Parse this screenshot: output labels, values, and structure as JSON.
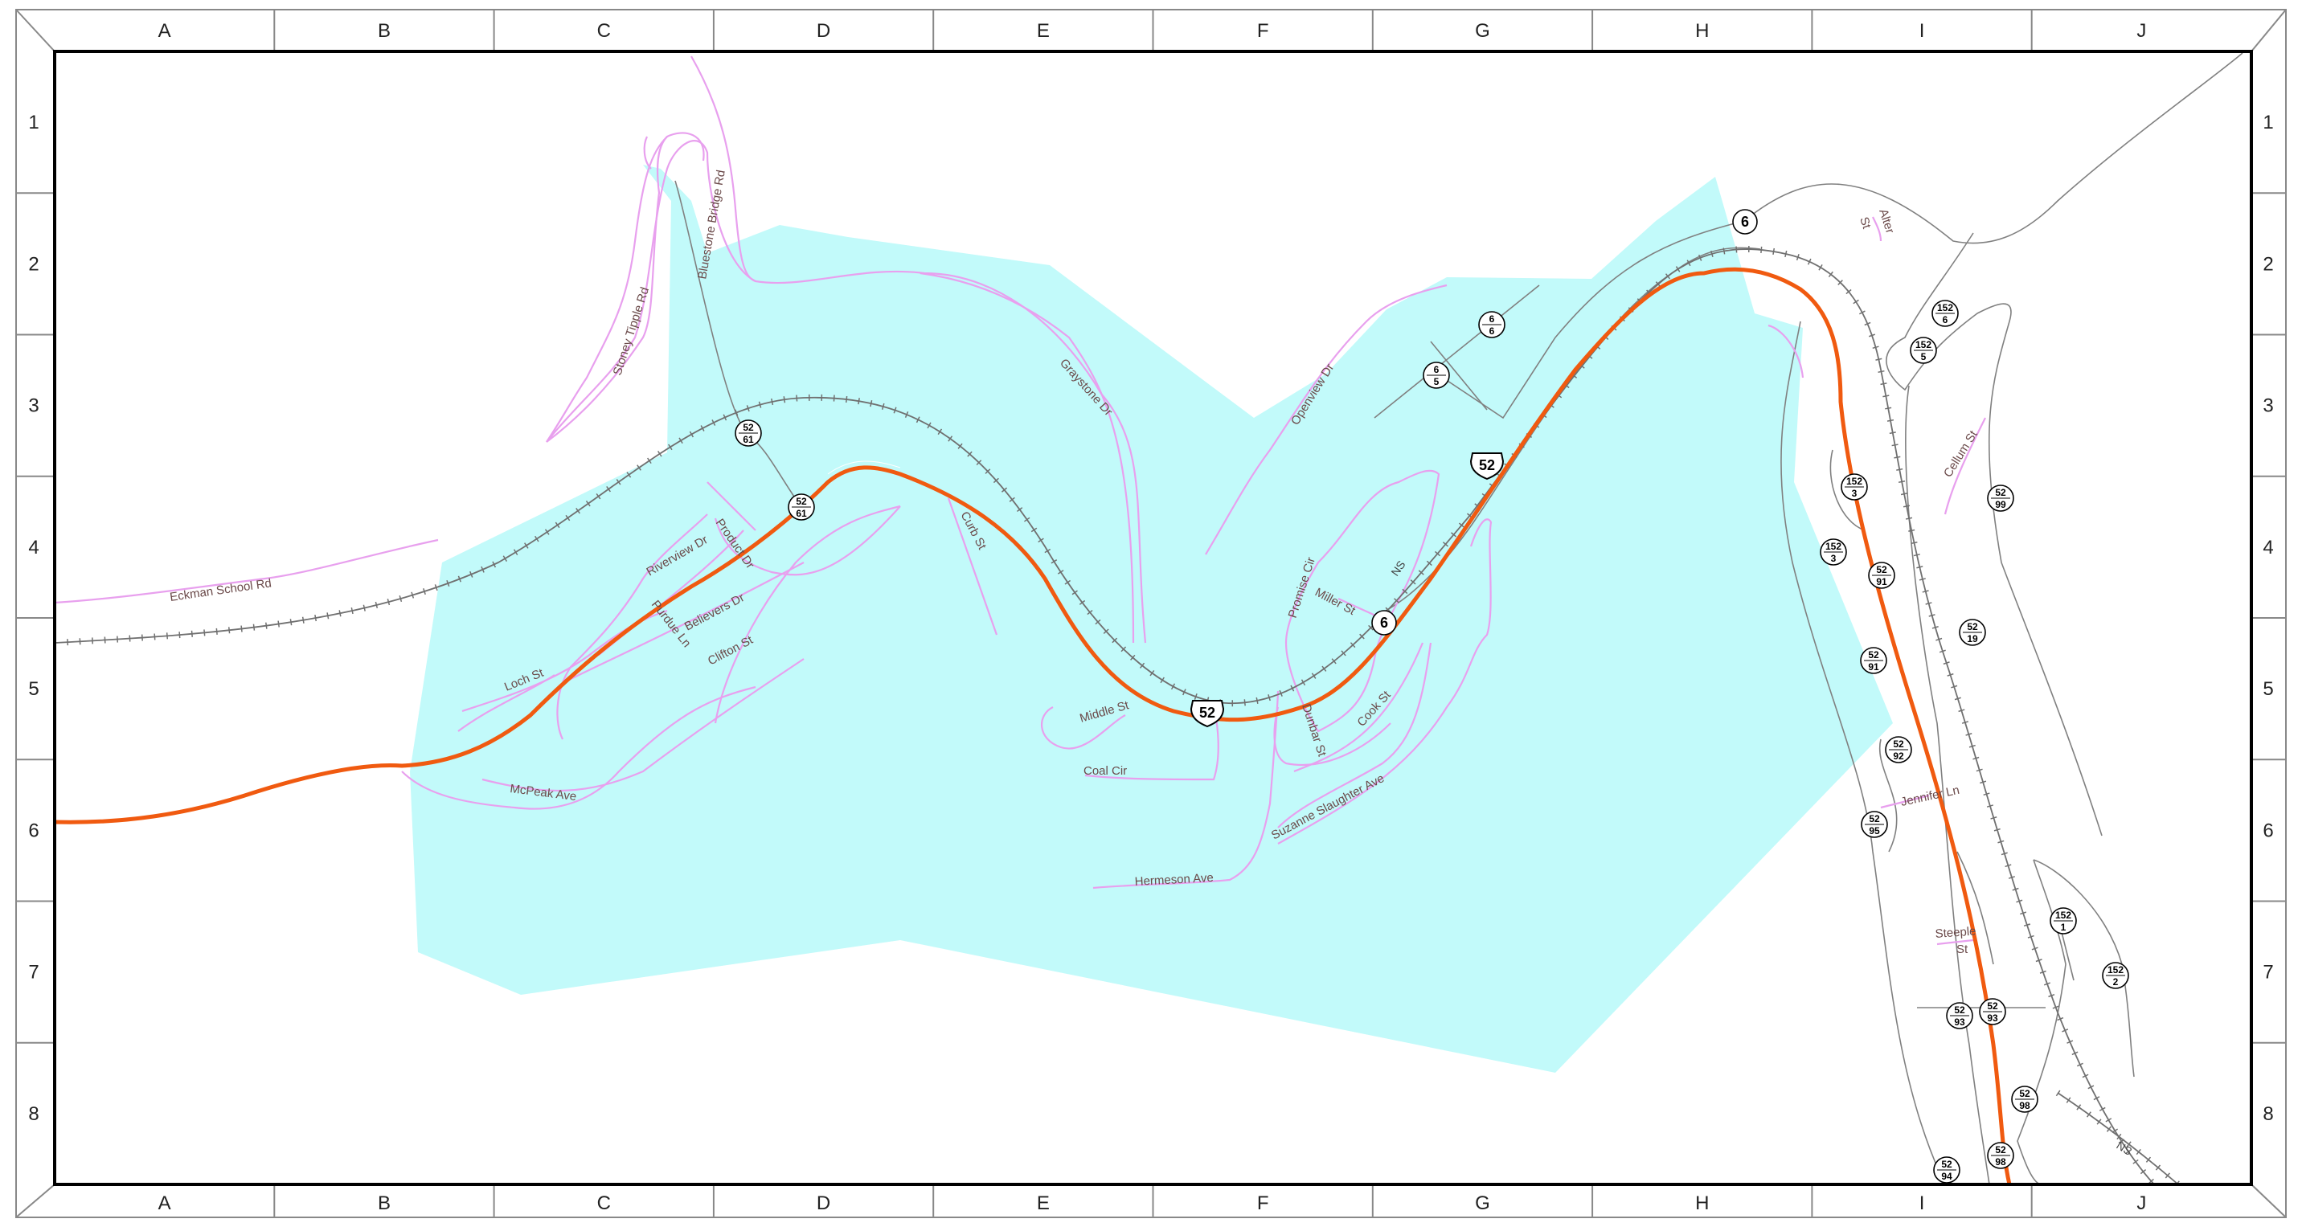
{
  "map": {
    "columns": [
      "A",
      "B",
      "C",
      "D",
      "E",
      "F",
      "G",
      "H",
      "I",
      "J"
    ],
    "rows": [
      "1",
      "2",
      "3",
      "4",
      "5",
      "6",
      "7",
      "8"
    ],
    "colors": {
      "area_fill": "#c2fafa",
      "major_route": "#f05a10",
      "local_street": "#e8a0ee",
      "minor_road": "#808080",
      "railroad": "#707070",
      "frame": "#000000"
    },
    "street_labels": {
      "eckman": "Eckman School Rd",
      "stoney": "Stoney Tipple Rd",
      "bluestone": "Bluestone Bridge Rd",
      "graystone": "Graystone Dr",
      "openview": "Openview Dr",
      "riverview": "Riverview Dr",
      "product": "Product Dr",
      "believers": "Believers Dr",
      "purdue": "Purdue Ln",
      "clifton": "Clifton St",
      "loch": "Loch St",
      "mcpeak": "McPeak Ave",
      "curb": "Curb St",
      "middle": "Middle St",
      "coal": "Coal Cir",
      "hermeson": "Hermeson Ave",
      "dunbar": "Dunbar St",
      "cook": "Cook St",
      "suzanne": "Suzanne Slaughter Ave",
      "promise": "Promise Cir",
      "miller": "Miller St",
      "alter": "Alter",
      "alter2": "St",
      "cellum": "Cellum St",
      "jennifer": "Jennifer Ln",
      "steeple": "Steeple",
      "steeple2": "St",
      "ns1": "NS",
      "ns2": "NS"
    },
    "shields": {
      "us52_a": "52",
      "us52_b": "52",
      "r6_a": "6",
      "r6_b": "6",
      "s52_61a_top": "52",
      "s52_61a_bot": "61",
      "s52_61b_top": "52",
      "s52_61b_bot": "61",
      "s6_6_top": "6",
      "s6_6_bot": "6",
      "s6_5_top": "6",
      "s6_5_bot": "5",
      "s152_6_top": "152",
      "s152_6_bot": "6",
      "s152_5_top": "152",
      "s152_5_bot": "5",
      "s152_3a_top": "152",
      "s152_3a_bot": "3",
      "s152_3b_top": "152",
      "s152_3b_bot": "3",
      "s52_99_top": "52",
      "s52_99_bot": "99",
      "s52_91a_top": "52",
      "s52_91a_bot": "91",
      "s52_91b_top": "52",
      "s52_91b_bot": "91",
      "s52_19_top": "52",
      "s52_19_bot": "19",
      "s52_92_top": "52",
      "s52_92_bot": "92",
      "s52_95_top": "52",
      "s52_95_bot": "95",
      "s152_1_top": "152",
      "s152_1_bot": "1",
      "s152_2_top": "152",
      "s152_2_bot": "2",
      "s52_93a_top": "52",
      "s52_93a_bot": "93",
      "s52_93b_top": "52",
      "s52_93b_bot": "93",
      "s52_98a_top": "52",
      "s52_98a_bot": "98",
      "s52_98b_top": "52",
      "s52_98b_bot": "98",
      "s52_94_top": "52",
      "s52_94_bot": "94"
    }
  }
}
